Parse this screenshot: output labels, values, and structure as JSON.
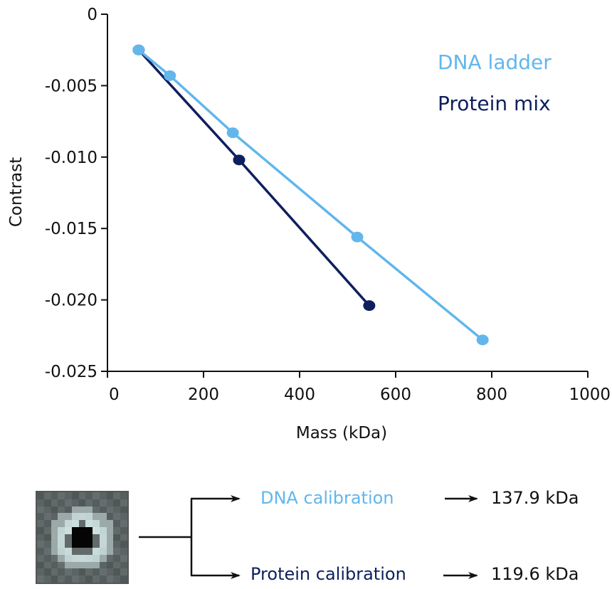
{
  "chart_data": {
    "type": "line",
    "title": "",
    "xlabel": "Mass (kDa)",
    "ylabel": "Contrast",
    "xlim": [
      0,
      1000
    ],
    "ylim": [
      -0.025,
      0
    ],
    "xticks": [
      0,
      200,
      400,
      600,
      800,
      1000
    ],
    "xtick_labels": [
      "0",
      "200",
      "400",
      "600",
      "800",
      "1000"
    ],
    "yticks": [
      0,
      -0.005,
      -0.01,
      -0.015,
      -0.02,
      -0.025
    ],
    "ytick_labels": [
      "0",
      "-0.005",
      "-0.010",
      "-0.015",
      "-0.020",
      "-0.025"
    ],
    "grid": false,
    "legend_position": "top-right",
    "series": [
      {
        "name": "DNA ladder",
        "color": "#62b6ec",
        "x": [
          65,
          130,
          261,
          520,
          781
        ],
        "y": [
          -0.0025,
          -0.0043,
          -0.0083,
          -0.0156,
          -0.0228
        ]
      },
      {
        "name": "Protein mix",
        "color": "#0e1f5e",
        "x": [
          65,
          274,
          545
        ],
        "y": [
          -0.0025,
          -0.0102,
          -0.0204
        ]
      }
    ]
  },
  "calibration": {
    "dna": {
      "label": "DNA calibration",
      "value": "137.9 kDa",
      "color": "#62b6ec"
    },
    "protein": {
      "label": "Protein calibration",
      "value": "119.6 kDa",
      "color": "#0e1f5e"
    }
  },
  "particle_image": {
    "description": "iSCAT particle contrast image",
    "icon": "particle-image-icon"
  }
}
